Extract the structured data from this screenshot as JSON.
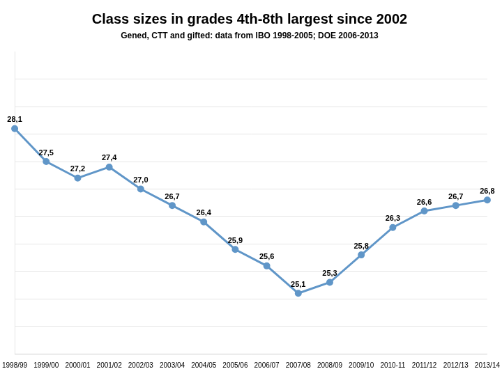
{
  "chart_data": {
    "type": "line",
    "title": "Class sizes in grades 4th-8th largest since 2002",
    "subtitle": "Gened, CTT and gifted: data from IBO 1998-2005; DOE 2006-2013",
    "categories": [
      "1998/99",
      "1999/00",
      "2000/01",
      "2001/02",
      "2002/03",
      "2003/04",
      "2004/05",
      "2005/06",
      "2006/07",
      "2007/08",
      "2008/09",
      "2009/10",
      "2010-11",
      "2011/12",
      "2012/13",
      "2013/14"
    ],
    "values": [
      28.1,
      27.5,
      27.2,
      27.4,
      27.0,
      26.7,
      26.4,
      25.9,
      25.6,
      25.1,
      25.3,
      25.8,
      26.3,
      26.6,
      26.7,
      26.8
    ],
    "value_labels": [
      "28,1",
      "27,5",
      "27,2",
      "27,4",
      "27,0",
      "26,7",
      "26,4",
      "25,9",
      "25,6",
      "25,1",
      "25,3",
      "25,8",
      "26,3",
      "26,6",
      "26,7",
      "26,8"
    ],
    "color": "#6096c8",
    "ylim": [
      24.0,
      29.5
    ],
    "yticks": [
      24.0,
      24.5,
      25.0,
      25.5,
      26.0,
      26.5,
      27.0,
      27.5,
      28.0,
      28.5,
      29.0
    ],
    "grid": true,
    "data_labels": true,
    "tick_labels": "x"
  }
}
